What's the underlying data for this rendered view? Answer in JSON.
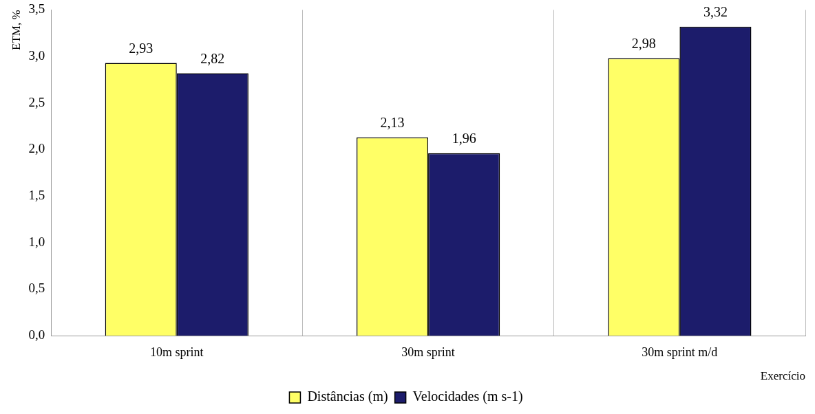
{
  "chart_data": {
    "type": "bar",
    "xlabel": "Exercício",
    "ylabel": "ETM, %",
    "categories": [
      "10m sprint",
      "30m sprint",
      "30m sprint m/d"
    ],
    "series": [
      {
        "name": "Distâncias (m)",
        "color": "#ffff66",
        "values": [
          2.93,
          2.13,
          2.98
        ],
        "value_labels": [
          "2,93",
          "2,13",
          "2,98"
        ]
      },
      {
        "name": "Velocidades (m s-1)",
        "color": "#1c1c6b",
        "values": [
          2.82,
          1.96,
          3.32
        ],
        "value_labels": [
          "2,82",
          "1,96",
          "3,32"
        ]
      }
    ],
    "ylim": [
      0,
      3.5
    ],
    "yticks": [
      {
        "value": 0,
        "label": "0,0"
      },
      {
        "value": 0.5,
        "label": "0,5"
      },
      {
        "value": 1,
        "label": "1,0"
      },
      {
        "value": 1.5,
        "label": "1,5"
      },
      {
        "value": 2,
        "label": "2,0"
      },
      {
        "value": 2.5,
        "label": "2,5"
      },
      {
        "value": 3,
        "label": "3,0"
      },
      {
        "value": 3.5,
        "label": "3,5"
      }
    ],
    "grid": "x",
    "legend": "bottom"
  }
}
